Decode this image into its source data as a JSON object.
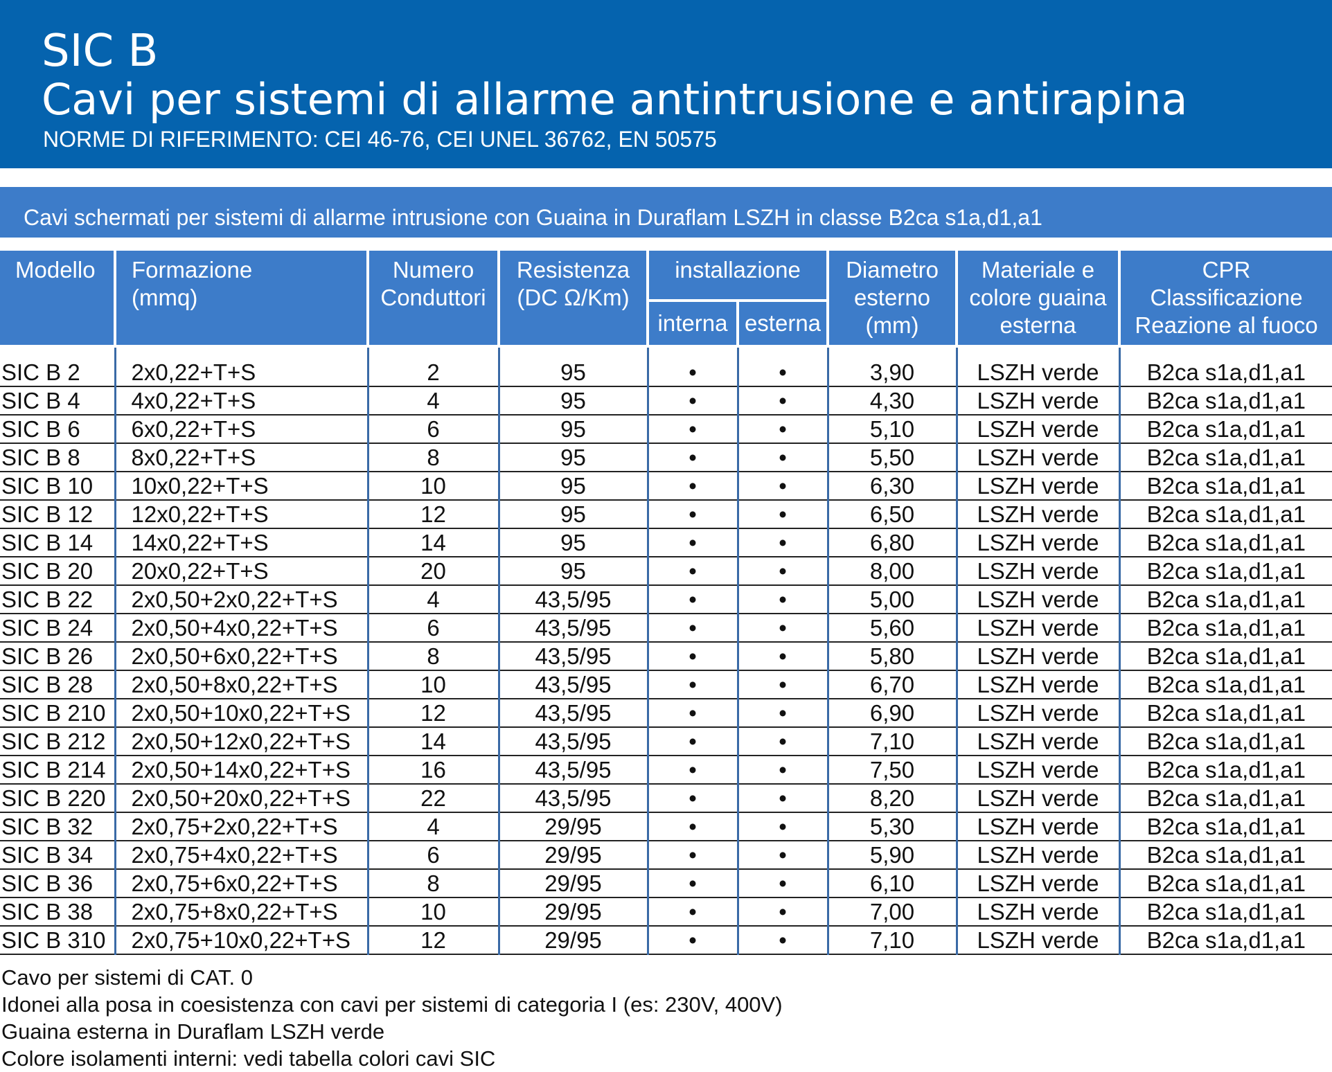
{
  "header": {
    "title": "SIC B",
    "subtitle": "Cavi per sistemi di allarme antintrusione e antirapina",
    "norms": "NORME DI RIFERIMENTO: CEI 46-76, CEI UNEL 36762, EN 50575"
  },
  "section": "Cavi schermati per sistemi di allarme intrusione con Guaina in Duraflam LSZH in classe B2ca s1a,d1,a1",
  "table": {
    "headers": [
      "Modello",
      "Formazione\n(mmq)",
      "Numero\nConduttori",
      "Resistenza\n(DC Ω/Km)",
      "installazione",
      "Diametro\nesterno\n(mm)",
      "Materiale e\ncolore guaina\nesterna",
      "CPR\nClassificazione\nReazione al fuoco"
    ],
    "subheaders": [
      "interna",
      "esterna"
    ],
    "rows": [
      [
        "SIC B 2",
        "2x0,22+T+S",
        "2",
        "95",
        "•",
        "•",
        "3,90",
        "LSZH verde",
        "B2ca s1a,d1,a1"
      ],
      [
        "SIC B 4",
        "4x0,22+T+S",
        "4",
        "95",
        "•",
        "•",
        "4,30",
        "LSZH verde",
        "B2ca s1a,d1,a1"
      ],
      [
        "SIC B 6",
        "6x0,22+T+S",
        "6",
        "95",
        "•",
        "•",
        "5,10",
        "LSZH verde",
        "B2ca s1a,d1,a1"
      ],
      [
        "SIC B 8",
        "8x0,22+T+S",
        "8",
        "95",
        "•",
        "•",
        "5,50",
        "LSZH verde",
        "B2ca s1a,d1,a1"
      ],
      [
        "SIC B 10",
        "10x0,22+T+S",
        "10",
        "95",
        "•",
        "•",
        "6,30",
        "LSZH verde",
        "B2ca s1a,d1,a1"
      ],
      [
        "SIC B 12",
        "12x0,22+T+S",
        "12",
        "95",
        "•",
        "•",
        "6,50",
        "LSZH verde",
        "B2ca s1a,d1,a1"
      ],
      [
        "SIC B 14",
        "14x0,22+T+S",
        "14",
        "95",
        "•",
        "•",
        "6,80",
        "LSZH verde",
        "B2ca s1a,d1,a1"
      ],
      [
        "SIC B 20",
        "20x0,22+T+S",
        "20",
        "95",
        "•",
        "•",
        "8,00",
        "LSZH verde",
        "B2ca s1a,d1,a1"
      ],
      [
        "SIC B 22",
        "2x0,50+2x0,22+T+S",
        "4",
        "43,5/95",
        "•",
        "•",
        "5,00",
        "LSZH verde",
        "B2ca s1a,d1,a1"
      ],
      [
        "SIC B 24",
        "2x0,50+4x0,22+T+S",
        "6",
        "43,5/95",
        "•",
        "•",
        "5,60",
        "LSZH verde",
        "B2ca s1a,d1,a1"
      ],
      [
        "SIC B 26",
        "2x0,50+6x0,22+T+S",
        "8",
        "43,5/95",
        "•",
        "•",
        "5,80",
        "LSZH verde",
        "B2ca s1a,d1,a1"
      ],
      [
        "SIC B 28",
        "2x0,50+8x0,22+T+S",
        "10",
        "43,5/95",
        "•",
        "•",
        "6,70",
        "LSZH verde",
        "B2ca s1a,d1,a1"
      ],
      [
        "SIC B 210",
        "2x0,50+10x0,22+T+S",
        "12",
        "43,5/95",
        "•",
        "•",
        "6,90",
        "LSZH verde",
        "B2ca s1a,d1,a1"
      ],
      [
        "SIC B 212",
        "2x0,50+12x0,22+T+S",
        "14",
        "43,5/95",
        "•",
        "•",
        "7,10",
        "LSZH verde",
        "B2ca s1a,d1,a1"
      ],
      [
        "SIC B 214",
        "2x0,50+14x0,22+T+S",
        "16",
        "43,5/95",
        "•",
        "•",
        "7,50",
        "LSZH verde",
        "B2ca s1a,d1,a1"
      ],
      [
        "SIC B 220",
        "2x0,50+20x0,22+T+S",
        "22",
        "43,5/95",
        "•",
        "•",
        "8,20",
        "LSZH verde",
        "B2ca s1a,d1,a1"
      ],
      [
        "SIC B 32",
        "2x0,75+2x0,22+T+S",
        "4",
        "29/95",
        "•",
        "•",
        "5,30",
        "LSZH verde",
        "B2ca s1a,d1,a1"
      ],
      [
        "SIC B 34",
        "2x0,75+4x0,22+T+S",
        "6",
        "29/95",
        "•",
        "•",
        "5,90",
        "LSZH verde",
        "B2ca s1a,d1,a1"
      ],
      [
        "SIC B 36",
        "2x0,75+6x0,22+T+S",
        "8",
        "29/95",
        "•",
        "•",
        "6,10",
        "LSZH verde",
        "B2ca s1a,d1,a1"
      ],
      [
        "SIC B 38",
        "2x0,75+8x0,22+T+S",
        "10",
        "29/95",
        "•",
        "•",
        "7,00",
        "LSZH verde",
        "B2ca s1a,d1,a1"
      ],
      [
        "SIC B 310",
        "2x0,75+10x0,22+T+S",
        "12",
        "29/95",
        "•",
        "•",
        "7,10",
        "LSZH verde",
        "B2ca s1a,d1,a1"
      ]
    ]
  },
  "notes": [
    "Cavo per sistemi di CAT. 0",
    "Idonei alla posa in coesistenza con cavi per sistemi di categoria I (es: 230V, 400V)",
    "Guaina esterna in Duraflam LSZH verde",
    "Colore isolamenti interni: vedi tabella colori cavi SIC"
  ]
}
